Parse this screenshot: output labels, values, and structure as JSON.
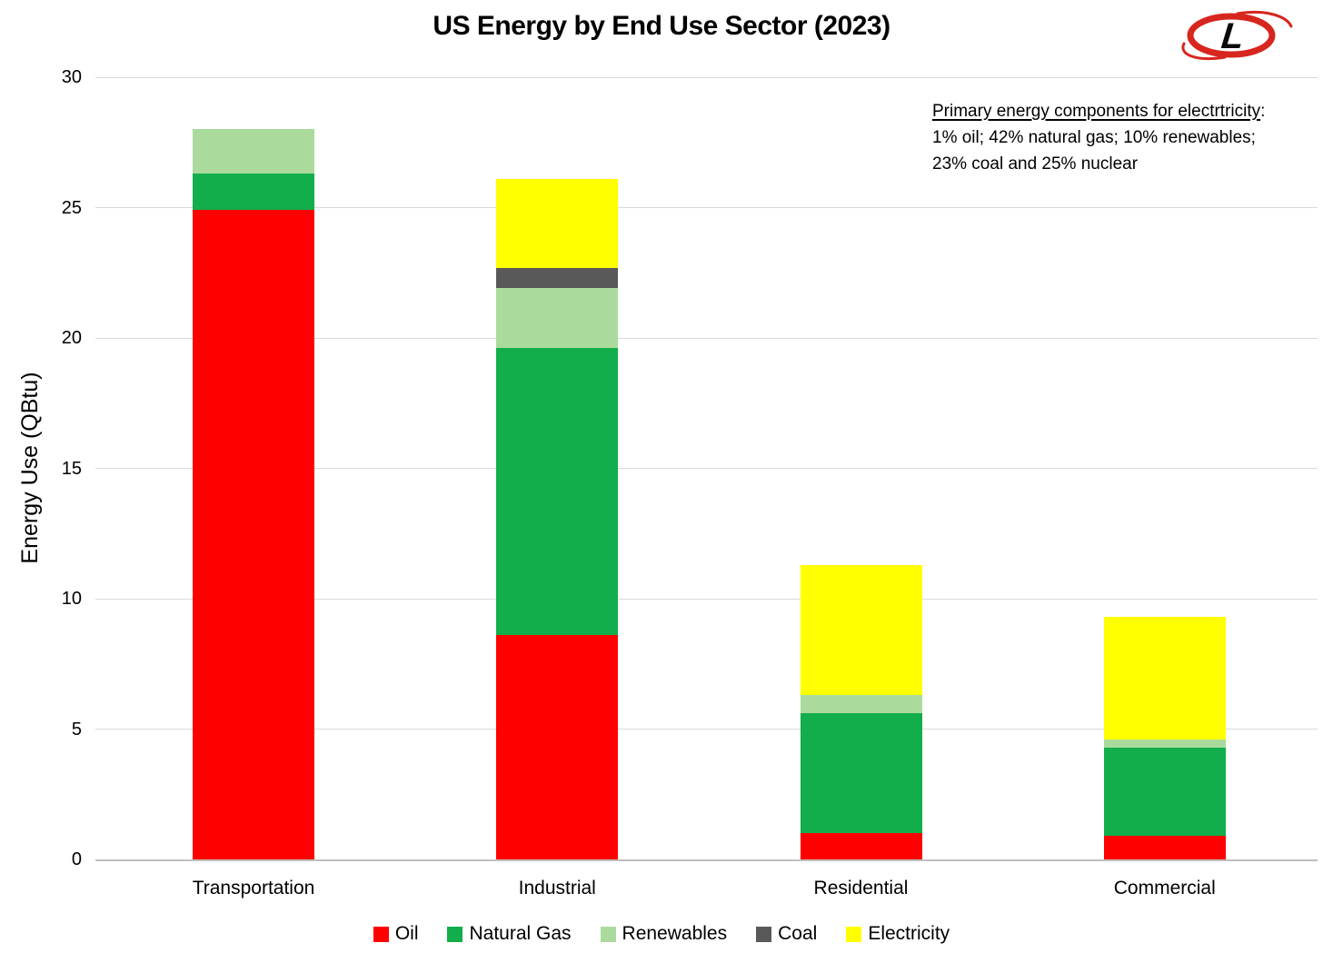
{
  "title": "US Energy by End Use Sector (2023)",
  "logo": {
    "letter": "L",
    "ring_color": "#D7261E",
    "letter_color": "#0A0A0A"
  },
  "annotation": {
    "heading": "Primary energy components for electrtricity",
    "heading_suffix": ":",
    "line2": "1% oil; 42% natural gas; 10% renewables;",
    "line3": "23% coal and 25% nuclear"
  },
  "chart_data": {
    "type": "bar",
    "stacked": true,
    "title": "US Energy by End Use Sector (2023)",
    "xlabel": "",
    "ylabel": "Energy Use (QBtu)",
    "categories": [
      "Transportation",
      "Industrial",
      "Residential",
      "Commercial"
    ],
    "series": [
      {
        "name": "Oil",
        "color": "#FF0000",
        "values": [
          24.9,
          8.6,
          1.0,
          0.9
        ]
      },
      {
        "name": "Natural Gas",
        "color": "#12AE4B",
        "values": [
          1.4,
          11.0,
          4.6,
          3.4
        ]
      },
      {
        "name": "Renewables",
        "color": "#ABDB9C",
        "values": [
          1.7,
          2.3,
          0.7,
          0.3
        ]
      },
      {
        "name": "Coal",
        "color": "#595959",
        "values": [
          0,
          0.8,
          0,
          0
        ]
      },
      {
        "name": "Electricity",
        "color": "#FFFF00",
        "values": [
          0,
          3.4,
          5.0,
          4.7
        ]
      }
    ],
    "bar_totals": [
      28.0,
      26.1,
      11.3,
      9.3
    ],
    "ylim": [
      0,
      30
    ],
    "yticks": [
      0,
      5,
      10,
      15,
      20,
      25,
      30
    ],
    "grid": true,
    "legend_position": "bottom"
  },
  "colors": {
    "gridline": "#D9D9D9",
    "axis_line": "#BFBFBF",
    "background": "#FFFFFF",
    "text": "#000000"
  }
}
